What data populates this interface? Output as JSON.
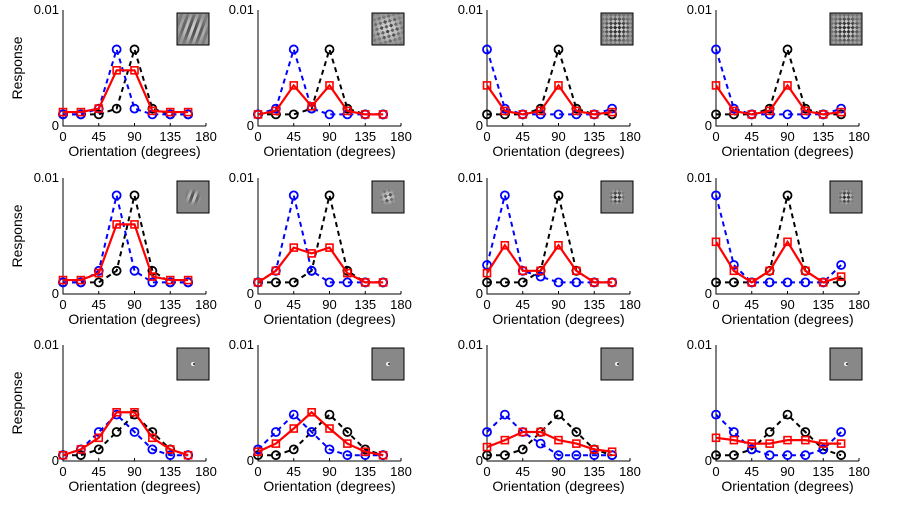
{
  "colors": {
    "blue": "#0000ff",
    "black": "#000000",
    "red": "#ff0000"
  },
  "chart_data": {
    "type": "line",
    "layout_rows": 3,
    "layout_cols": 4,
    "xlabel": "Orientation (degrees)",
    "ylabel": "Response",
    "xticks": [
      "0",
      "45",
      "90",
      "135",
      "180"
    ],
    "yticks": [
      "0",
      "0.01"
    ],
    "xlim": [
      0,
      180
    ],
    "ylim": [
      0,
      0.01
    ],
    "x": [
      0,
      22.5,
      45,
      67.5,
      90,
      112.5,
      135,
      157.5
    ],
    "series_styles": [
      {
        "key": "blue",
        "line": "dashed",
        "marker": "circle",
        "color": "#0000ff"
      },
      {
        "key": "black",
        "line": "dashed",
        "marker": "circle",
        "color": "#000000"
      },
      {
        "key": "red",
        "line": "solid",
        "marker": "square",
        "color": "#ff0000"
      }
    ],
    "panels": [
      {
        "stimulus": "grating",
        "blue": [
          0.001,
          0.001,
          0.0015,
          0.0066,
          0.0015,
          0.001,
          0.001,
          0.001
        ],
        "black": [
          0.001,
          0.001,
          0.001,
          0.0015,
          0.0066,
          0.0015,
          0.001,
          0.001
        ],
        "red": [
          0.0012,
          0.0012,
          0.0015,
          0.0048,
          0.0048,
          0.0013,
          0.0012,
          0.0012
        ]
      },
      {
        "stimulus": "plaid",
        "blue": [
          0.001,
          0.0015,
          0.0066,
          0.0015,
          0.001,
          0.001,
          0.001,
          0.001
        ],
        "black": [
          0.001,
          0.001,
          0.001,
          0.0015,
          0.0066,
          0.0015,
          0.001,
          0.001
        ],
        "red": [
          0.001,
          0.0013,
          0.0035,
          0.0017,
          0.0035,
          0.0013,
          0.001,
          0.001
        ]
      },
      {
        "stimulus": "checker",
        "blue": [
          0.0066,
          0.0015,
          0.001,
          0.001,
          0.001,
          0.001,
          0.001,
          0.0015
        ],
        "black": [
          0.001,
          0.001,
          0.001,
          0.0015,
          0.0066,
          0.0015,
          0.001,
          0.001
        ],
        "red": [
          0.0035,
          0.0013,
          0.001,
          0.0013,
          0.0035,
          0.0013,
          0.001,
          0.0012
        ]
      },
      {
        "stimulus": "checker",
        "blue": [
          0.0066,
          0.0015,
          0.001,
          0.001,
          0.001,
          0.001,
          0.001,
          0.0015
        ],
        "black": [
          0.001,
          0.001,
          0.001,
          0.0015,
          0.0066,
          0.0015,
          0.001,
          0.001
        ],
        "red": [
          0.0035,
          0.0013,
          0.001,
          0.0013,
          0.0035,
          0.0013,
          0.001,
          0.0012
        ]
      },
      {
        "stimulus": "grating-patch",
        "blue": [
          0.001,
          0.001,
          0.002,
          0.0085,
          0.002,
          0.001,
          0.001,
          0.001
        ],
        "black": [
          0.001,
          0.001,
          0.001,
          0.002,
          0.0085,
          0.002,
          0.001,
          0.001
        ],
        "red": [
          0.0012,
          0.0012,
          0.0018,
          0.006,
          0.006,
          0.0015,
          0.0012,
          0.0012
        ]
      },
      {
        "stimulus": "plaid-patch",
        "blue": [
          0.001,
          0.002,
          0.0085,
          0.002,
          0.001,
          0.001,
          0.001,
          0.001
        ],
        "black": [
          0.001,
          0.001,
          0.001,
          0.002,
          0.0085,
          0.002,
          0.001,
          0.001
        ],
        "red": [
          0.001,
          0.002,
          0.004,
          0.0035,
          0.004,
          0.0018,
          0.001,
          0.001
        ]
      },
      {
        "stimulus": "checker-patch",
        "blue": [
          0.0025,
          0.0085,
          0.002,
          0.0015,
          0.001,
          0.001,
          0.001,
          0.001
        ],
        "black": [
          0.001,
          0.001,
          0.001,
          0.002,
          0.0085,
          0.002,
          0.001,
          0.001
        ],
        "red": [
          0.0018,
          0.0042,
          0.002,
          0.002,
          0.0042,
          0.002,
          0.001,
          0.001
        ]
      },
      {
        "stimulus": "checker-patch",
        "blue": [
          0.0085,
          0.0025,
          0.001,
          0.001,
          0.001,
          0.001,
          0.001,
          0.0025
        ],
        "black": [
          0.001,
          0.001,
          0.001,
          0.002,
          0.0085,
          0.002,
          0.001,
          0.001
        ],
        "red": [
          0.0045,
          0.002,
          0.001,
          0.002,
          0.0045,
          0.002,
          0.001,
          0.0015
        ]
      },
      {
        "stimulus": "tiny-grating",
        "blue": [
          0.0005,
          0.001,
          0.0025,
          0.004,
          0.0025,
          0.001,
          0.0005,
          0.0005
        ],
        "black": [
          0.0005,
          0.0005,
          0.001,
          0.0025,
          0.004,
          0.0025,
          0.001,
          0.0005
        ],
        "red": [
          0.0005,
          0.001,
          0.002,
          0.0042,
          0.0042,
          0.002,
          0.001,
          0.0005
        ]
      },
      {
        "stimulus": "tiny-plaid",
        "blue": [
          0.001,
          0.0025,
          0.004,
          0.0025,
          0.001,
          0.0005,
          0.0005,
          0.0005
        ],
        "black": [
          0.0005,
          0.0005,
          0.001,
          0.0025,
          0.004,
          0.0025,
          0.001,
          0.0005
        ],
        "red": [
          0.0008,
          0.0015,
          0.0028,
          0.0042,
          0.0028,
          0.0015,
          0.0008,
          0.0005
        ]
      },
      {
        "stimulus": "tiny-checker",
        "blue": [
          0.0025,
          0.004,
          0.0025,
          0.0015,
          0.0005,
          0.0005,
          0.0005,
          0.0005
        ],
        "black": [
          0.0005,
          0.0005,
          0.001,
          0.0025,
          0.004,
          0.0025,
          0.001,
          0.0005
        ],
        "red": [
          0.0012,
          0.0018,
          0.0025,
          0.0025,
          0.0018,
          0.0015,
          0.001,
          0.0008
        ]
      },
      {
        "stimulus": "tiny-checker",
        "blue": [
          0.004,
          0.0025,
          0.001,
          0.0005,
          0.0005,
          0.0005,
          0.001,
          0.0025
        ],
        "black": [
          0.0005,
          0.0005,
          0.001,
          0.0025,
          0.004,
          0.0025,
          0.001,
          0.0005
        ],
        "red": [
          0.002,
          0.0018,
          0.0015,
          0.0015,
          0.0018,
          0.0018,
          0.0015,
          0.0015
        ]
      }
    ]
  }
}
